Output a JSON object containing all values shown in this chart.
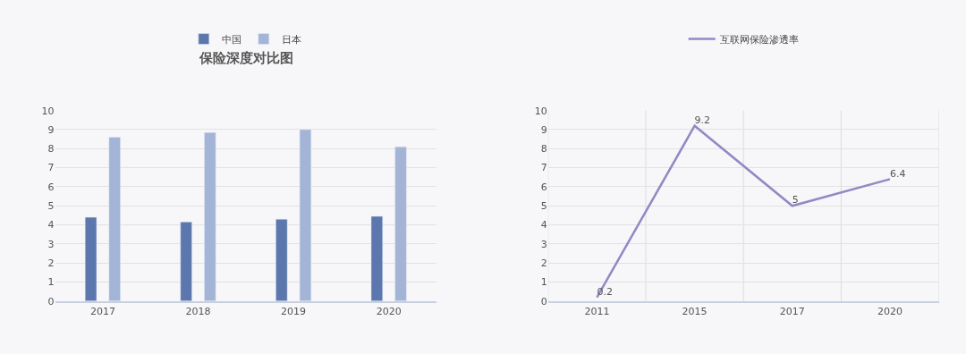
{
  "chart_data": [
    {
      "type": "bar",
      "title": "保险深度对比图",
      "categories": [
        "2017",
        "2018",
        "2019",
        "2020"
      ],
      "series": [
        {
          "name": "中国",
          "color": "#5b77ad",
          "values": [
            4.4,
            4.15,
            4.3,
            4.45
          ]
        },
        {
          "name": "日本",
          "color": "#a3b4d6",
          "values": [
            8.6,
            8.85,
            9.0,
            8.1
          ]
        }
      ],
      "ylim": [
        0,
        10
      ],
      "yticks": [
        0,
        1,
        2,
        3,
        4,
        5,
        6,
        7,
        8,
        9,
        10
      ],
      "grid": "y",
      "legend": "top"
    },
    {
      "type": "line",
      "categories": [
        "2011",
        "2015",
        "2017",
        "2020"
      ],
      "series": [
        {
          "name": "互联网保险渗透率",
          "color": "#9189c4",
          "values": [
            0.2,
            9.2,
            5,
            6.4
          ]
        }
      ],
      "ylim": [
        0,
        10
      ],
      "yticks": [
        0,
        1,
        2,
        3,
        4,
        5,
        6,
        7,
        8,
        9,
        10
      ],
      "grid": true,
      "legend": "top",
      "data_labels": true,
      "marker": "none"
    }
  ]
}
